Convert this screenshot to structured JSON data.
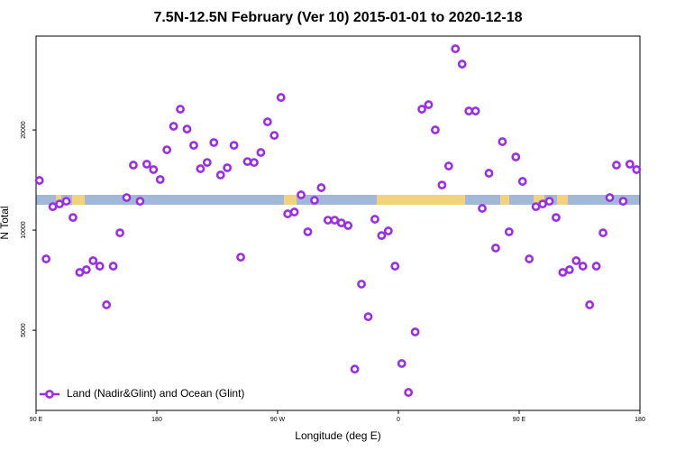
{
  "chart_data": {
    "type": "scatter",
    "title": "7.5N-12.5N February (Ver 10)   2015-01-01 to 2020-12-18",
    "xlabel": "Longitude (deg E)",
    "ylabel": "N Total",
    "xlim": [
      90,
      540
    ],
    "xticks": [
      {
        "value": 90,
        "label": "90 E"
      },
      {
        "value": 180,
        "label": "180"
      },
      {
        "value": 270,
        "label": "90 W"
      },
      {
        "value": 360,
        "label": "0"
      },
      {
        "value": 450,
        "label": "90 E"
      },
      {
        "value": 540,
        "label": "180"
      }
    ],
    "ylim": [
      2870,
      38300
    ],
    "yscale": "log",
    "yticks": [
      5000,
      10000,
      20000
    ],
    "legend": "lower left",
    "series": [
      {
        "name": "Land (Nadir&Glint) and Ocean (Glint)",
        "color": "#9a2ee6",
        "x": [
          92.5,
          97.5,
          102.5,
          107.5,
          112.5,
          117.5,
          122.5,
          127.5,
          132.5,
          137.5,
          142.5,
          147.5,
          152.5,
          157.5,
          162.5,
          167.5,
          172.5,
          177.5,
          182.5,
          187.5,
          192.5,
          197.5,
          202.5,
          207.5,
          212.5,
          217.5,
          222.5,
          227.5,
          232.5,
          237.5,
          242.5,
          247.5,
          252.5,
          257.5,
          262.5,
          267.5,
          272.5,
          277.5,
          282.5,
          287.5,
          292.5,
          297.5,
          302.5,
          307.5,
          312.5,
          317.5,
          322.5,
          327.5,
          332.5,
          337.5,
          342.5,
          347.5,
          352.5,
          357.5,
          362.5,
          367.5,
          372.5,
          377.5,
          382.5,
          387.5,
          392.5,
          397.5,
          402.5,
          407.5,
          412.5,
          417.5,
          422.5,
          427.5,
          432.5,
          437.5,
          442.5,
          447.5,
          452.5,
          457.5,
          462.5,
          467.5,
          472.5,
          477.5,
          482.5,
          487.5,
          492.5,
          497.5,
          502.5,
          507.5,
          512.5,
          517.5,
          522.5,
          527.5,
          532.5,
          537.5
        ],
        "values": [
          14100,
          8190,
          11760,
          11980,
          12210,
          10910,
          7460,
          7600,
          8090,
          7790,
          5960,
          7790,
          9810,
          12520,
          15680,
          12210,
          15780,
          15200,
          14190,
          17430,
          20510,
          23090,
          20120,
          17980,
          15290,
          15970,
          18330,
          14640,
          15390,
          17980,
          8290,
          16070,
          15970,
          17110,
          21160,
          19260,
          25040,
          11190,
          11330,
          12760,
          9880,
          12290,
          13410,
          10710,
          10710,
          10510,
          10320,
          3820,
          6880,
          5490,
          10780,
          9630,
          9940,
          7790,
          3970,
          3250,
          4940,
          23090,
          23820,
          20000,
          13660,
          15580,
          35080,
          31550,
          22800,
          22800,
          11620,
          14820,
          8830,
          18440,
          9880,
          16590,
          14010,
          8190,
          11760,
          11980,
          12210,
          10910,
          7460,
          7600,
          8090,
          7790,
          5960,
          7790,
          9810,
          12520,
          15680,
          12210,
          15780,
          15200
        ]
      }
    ]
  }
}
